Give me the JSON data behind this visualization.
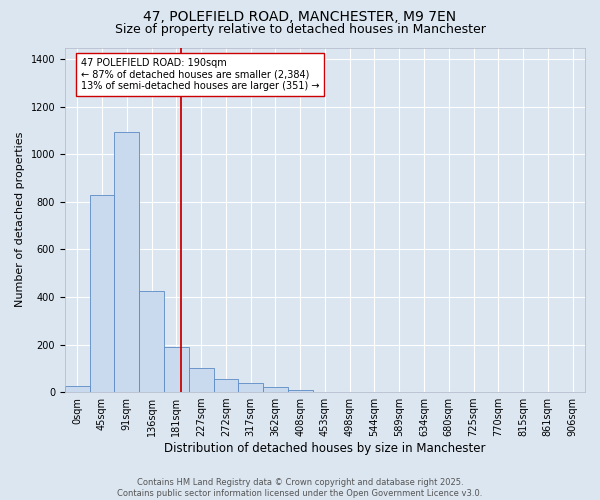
{
  "title": "47, POLEFIELD ROAD, MANCHESTER, M9 7EN",
  "subtitle": "Size of property relative to detached houses in Manchester",
  "xlabel": "Distribution of detached houses by size in Manchester",
  "ylabel": "Number of detached properties",
  "bar_values": [
    25,
    830,
    1095,
    425,
    190,
    100,
    55,
    40,
    22,
    10,
    0,
    0,
    0,
    0,
    0,
    0,
    0,
    0,
    0,
    0,
    0
  ],
  "bar_labels": [
    "0sqm",
    "45sqm",
    "91sqm",
    "136sqm",
    "181sqm",
    "227sqm",
    "272sqm",
    "317sqm",
    "362sqm",
    "408sqm",
    "453sqm",
    "498sqm",
    "544sqm",
    "589sqm",
    "634sqm",
    "680sqm",
    "725sqm",
    "770sqm",
    "815sqm",
    "861sqm",
    "906sqm"
  ],
  "bar_color": "#c9d9ee",
  "bar_edge_color": "#5b8ac5",
  "background_color": "#dce6f1",
  "plot_bg_color": "#dce6f1",
  "grid_color": "#ffffff",
  "vline_color": "#cc0000",
  "annotation_text": "47 POLEFIELD ROAD: 190sqm\n← 87% of detached houses are smaller (2,384)\n13% of semi-detached houses are larger (351) →",
  "annotation_box_color": "#ffffff",
  "annotation_box_edge": "#cc0000",
  "ylim": [
    0,
    1450
  ],
  "footnote": "Contains HM Land Registry data © Crown copyright and database right 2025.\nContains public sector information licensed under the Open Government Licence v3.0.",
  "title_fontsize": 10,
  "subtitle_fontsize": 9,
  "xlabel_fontsize": 8.5,
  "ylabel_fontsize": 8,
  "tick_fontsize": 7,
  "annotation_fontsize": 7,
  "footnote_fontsize": 6
}
